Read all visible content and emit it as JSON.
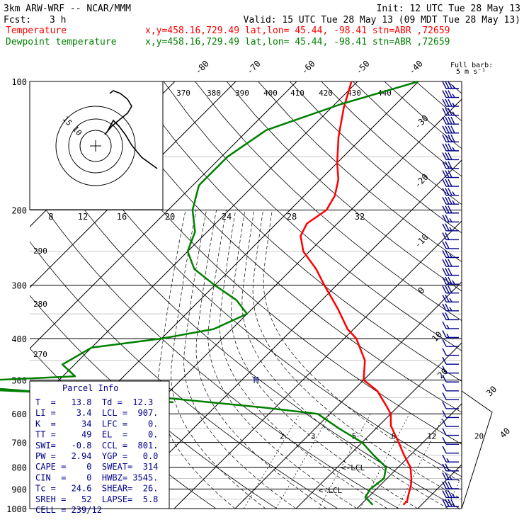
{
  "header": {
    "model": "3km ARW-WRF -- NCAR/MMM",
    "init": "Init: 12 UTC Tue 28 May 13",
    "fcst_label": "Fcst:",
    "fcst_value": "3 h",
    "valid": "Valid: 15 UTC Tue 28 May 13 (09 MDT Tue 28 May 13)",
    "temperature_label": "Temperature",
    "temperature_info": "x,y=458.16,729.49   lat,lon= 45.44, -98.41   stn=ABR ,72659",
    "dewpoint_label": "Dewpoint temperature",
    "dewpoint_info": "x,y=458.16,729.49   lat,lon= 45.44, -98.41   stn=ABR ,72659",
    "full_barb_1": "Full barb:",
    "full_barb_2": "5 m s⁻¹"
  },
  "colors": {
    "temperature": "#ff0000",
    "dewpoint": "#008000",
    "parcel": "#00008b",
    "isotherm": "#000000",
    "grid": "#000000"
  },
  "chart_data": {
    "type": "line",
    "chart_kind": "skew-T log-p sounding",
    "y_axis": {
      "scale": "log",
      "unit": "hPa",
      "range": [
        1000,
        100
      ],
      "ticks": [
        "100",
        "200",
        "300",
        "400",
        "500",
        "600",
        "700",
        "800",
        "900",
        "1000"
      ]
    },
    "isotherm_labels": [
      "-80",
      "-70",
      "-60",
      "-50",
      "-40",
      "-30",
      "-20",
      "-10",
      "0",
      "10",
      "20",
      "30",
      "40"
    ],
    "theta_labels": [
      "370",
      "380",
      "390",
      "400",
      "410",
      "420",
      "430",
      "440",
      "290",
      "280",
      "270"
    ],
    "mixing_ratio_labels": [
      "2",
      "3",
      "5",
      "8",
      "12",
      "20"
    ],
    "hodograph": {
      "unit_label": "kts",
      "rings": [
        "8",
        "12",
        "16",
        "20",
        "24",
        "28",
        "32"
      ],
      "ring_labels": [
        "10",
        "15"
      ]
    },
    "series": [
      {
        "name": "Temperature",
        "color": "#ff0000",
        "points": [
          [
            100,
            -61
          ],
          [
            115,
            -58
          ],
          [
            135,
            -54
          ],
          [
            155,
            -50
          ],
          [
            170,
            -47
          ],
          [
            185,
            -45
          ],
          [
            200,
            -44
          ],
          [
            215,
            -45
          ],
          [
            230,
            -44
          ],
          [
            250,
            -41
          ],
          [
            275,
            -36
          ],
          [
            300,
            -32
          ],
          [
            340,
            -26
          ],
          [
            380,
            -21
          ],
          [
            400,
            -18
          ],
          [
            450,
            -13
          ],
          [
            500,
            -10
          ],
          [
            530,
            -6
          ],
          [
            575,
            -2
          ],
          [
            600,
            0
          ],
          [
            640,
            2
          ],
          [
            700,
            6
          ],
          [
            750,
            9
          ],
          [
            800,
            12
          ],
          [
            850,
            14
          ],
          [
            880,
            15
          ],
          [
            920,
            16
          ],
          [
            960,
            17
          ],
          [
            980,
            17
          ]
        ]
      },
      {
        "name": "Dewpoint temperature",
        "color": "#008000",
        "points": [
          [
            100,
            -50
          ],
          [
            113,
            -59
          ],
          [
            130,
            -67
          ],
          [
            150,
            -69
          ],
          [
            175,
            -69
          ],
          [
            200,
            -66
          ],
          [
            225,
            -62
          ],
          [
            250,
            -60
          ],
          [
            275,
            -56
          ],
          [
            300,
            -50
          ],
          [
            325,
            -44
          ],
          [
            350,
            -40
          ],
          [
            380,
            -43
          ],
          [
            400,
            -50
          ],
          [
            420,
            -60
          ],
          [
            460,
            -62
          ],
          [
            490,
            -58
          ],
          [
            505,
            -77
          ],
          [
            520,
            -80
          ],
          [
            550,
            -40
          ],
          [
            580,
            -22
          ],
          [
            600,
            -12
          ],
          [
            650,
            -6
          ],
          [
            700,
            0
          ],
          [
            750,
            4
          ],
          [
            800,
            8
          ],
          [
            850,
            9.5
          ],
          [
            900,
            9
          ],
          [
            940,
            9.5
          ],
          [
            980,
            12
          ]
        ]
      }
    ],
    "annotations": [
      "LCL",
      "LCL",
      "M"
    ]
  },
  "parcel_info": {
    "title": "Parcel Info",
    "lines": [
      "T  =   13.8  Td =  12.3",
      "LI =    3.4  LCL =  907.",
      "K  =     34  LFC =    0.",
      "TT =     49  EL  =    0.",
      "SWI=   -0.8  CCL =  801.",
      "PW =   2.94  YGP =   0.0",
      "CAPE =    0  SWEAT=  314",
      "CIN  =    0  HWBZ= 3545.",
      "Tc =   24.6  SHEAR=  26.",
      "SREH =   52  LAPSE=  5.8",
      "CELL = 239/12"
    ]
  },
  "wind_profile": {
    "speeds": [
      35,
      35,
      35,
      35,
      40,
      40,
      40,
      35,
      30,
      30,
      30,
      30,
      35,
      35,
      30,
      25,
      25,
      20,
      20,
      25,
      30,
      30,
      35,
      30,
      25,
      25,
      20,
      15,
      15,
      10,
      10,
      10,
      10,
      10,
      10,
      10,
      10,
      10,
      10,
      10,
      10,
      10,
      15,
      20,
      25,
      30,
      35,
      40
    ],
    "directions": [
      270,
      270,
      270,
      270,
      270,
      270,
      270,
      270,
      270,
      270,
      270,
      270,
      270,
      270,
      270,
      270,
      270,
      270,
      270,
      270,
      270,
      270,
      270,
      270,
      270,
      270,
      270,
      270,
      270,
      270,
      270,
      250,
      240,
      230,
      220,
      210,
      200,
      200,
      200,
      200,
      200,
      200,
      200,
      200,
      200,
      200,
      200,
      200
    ]
  }
}
